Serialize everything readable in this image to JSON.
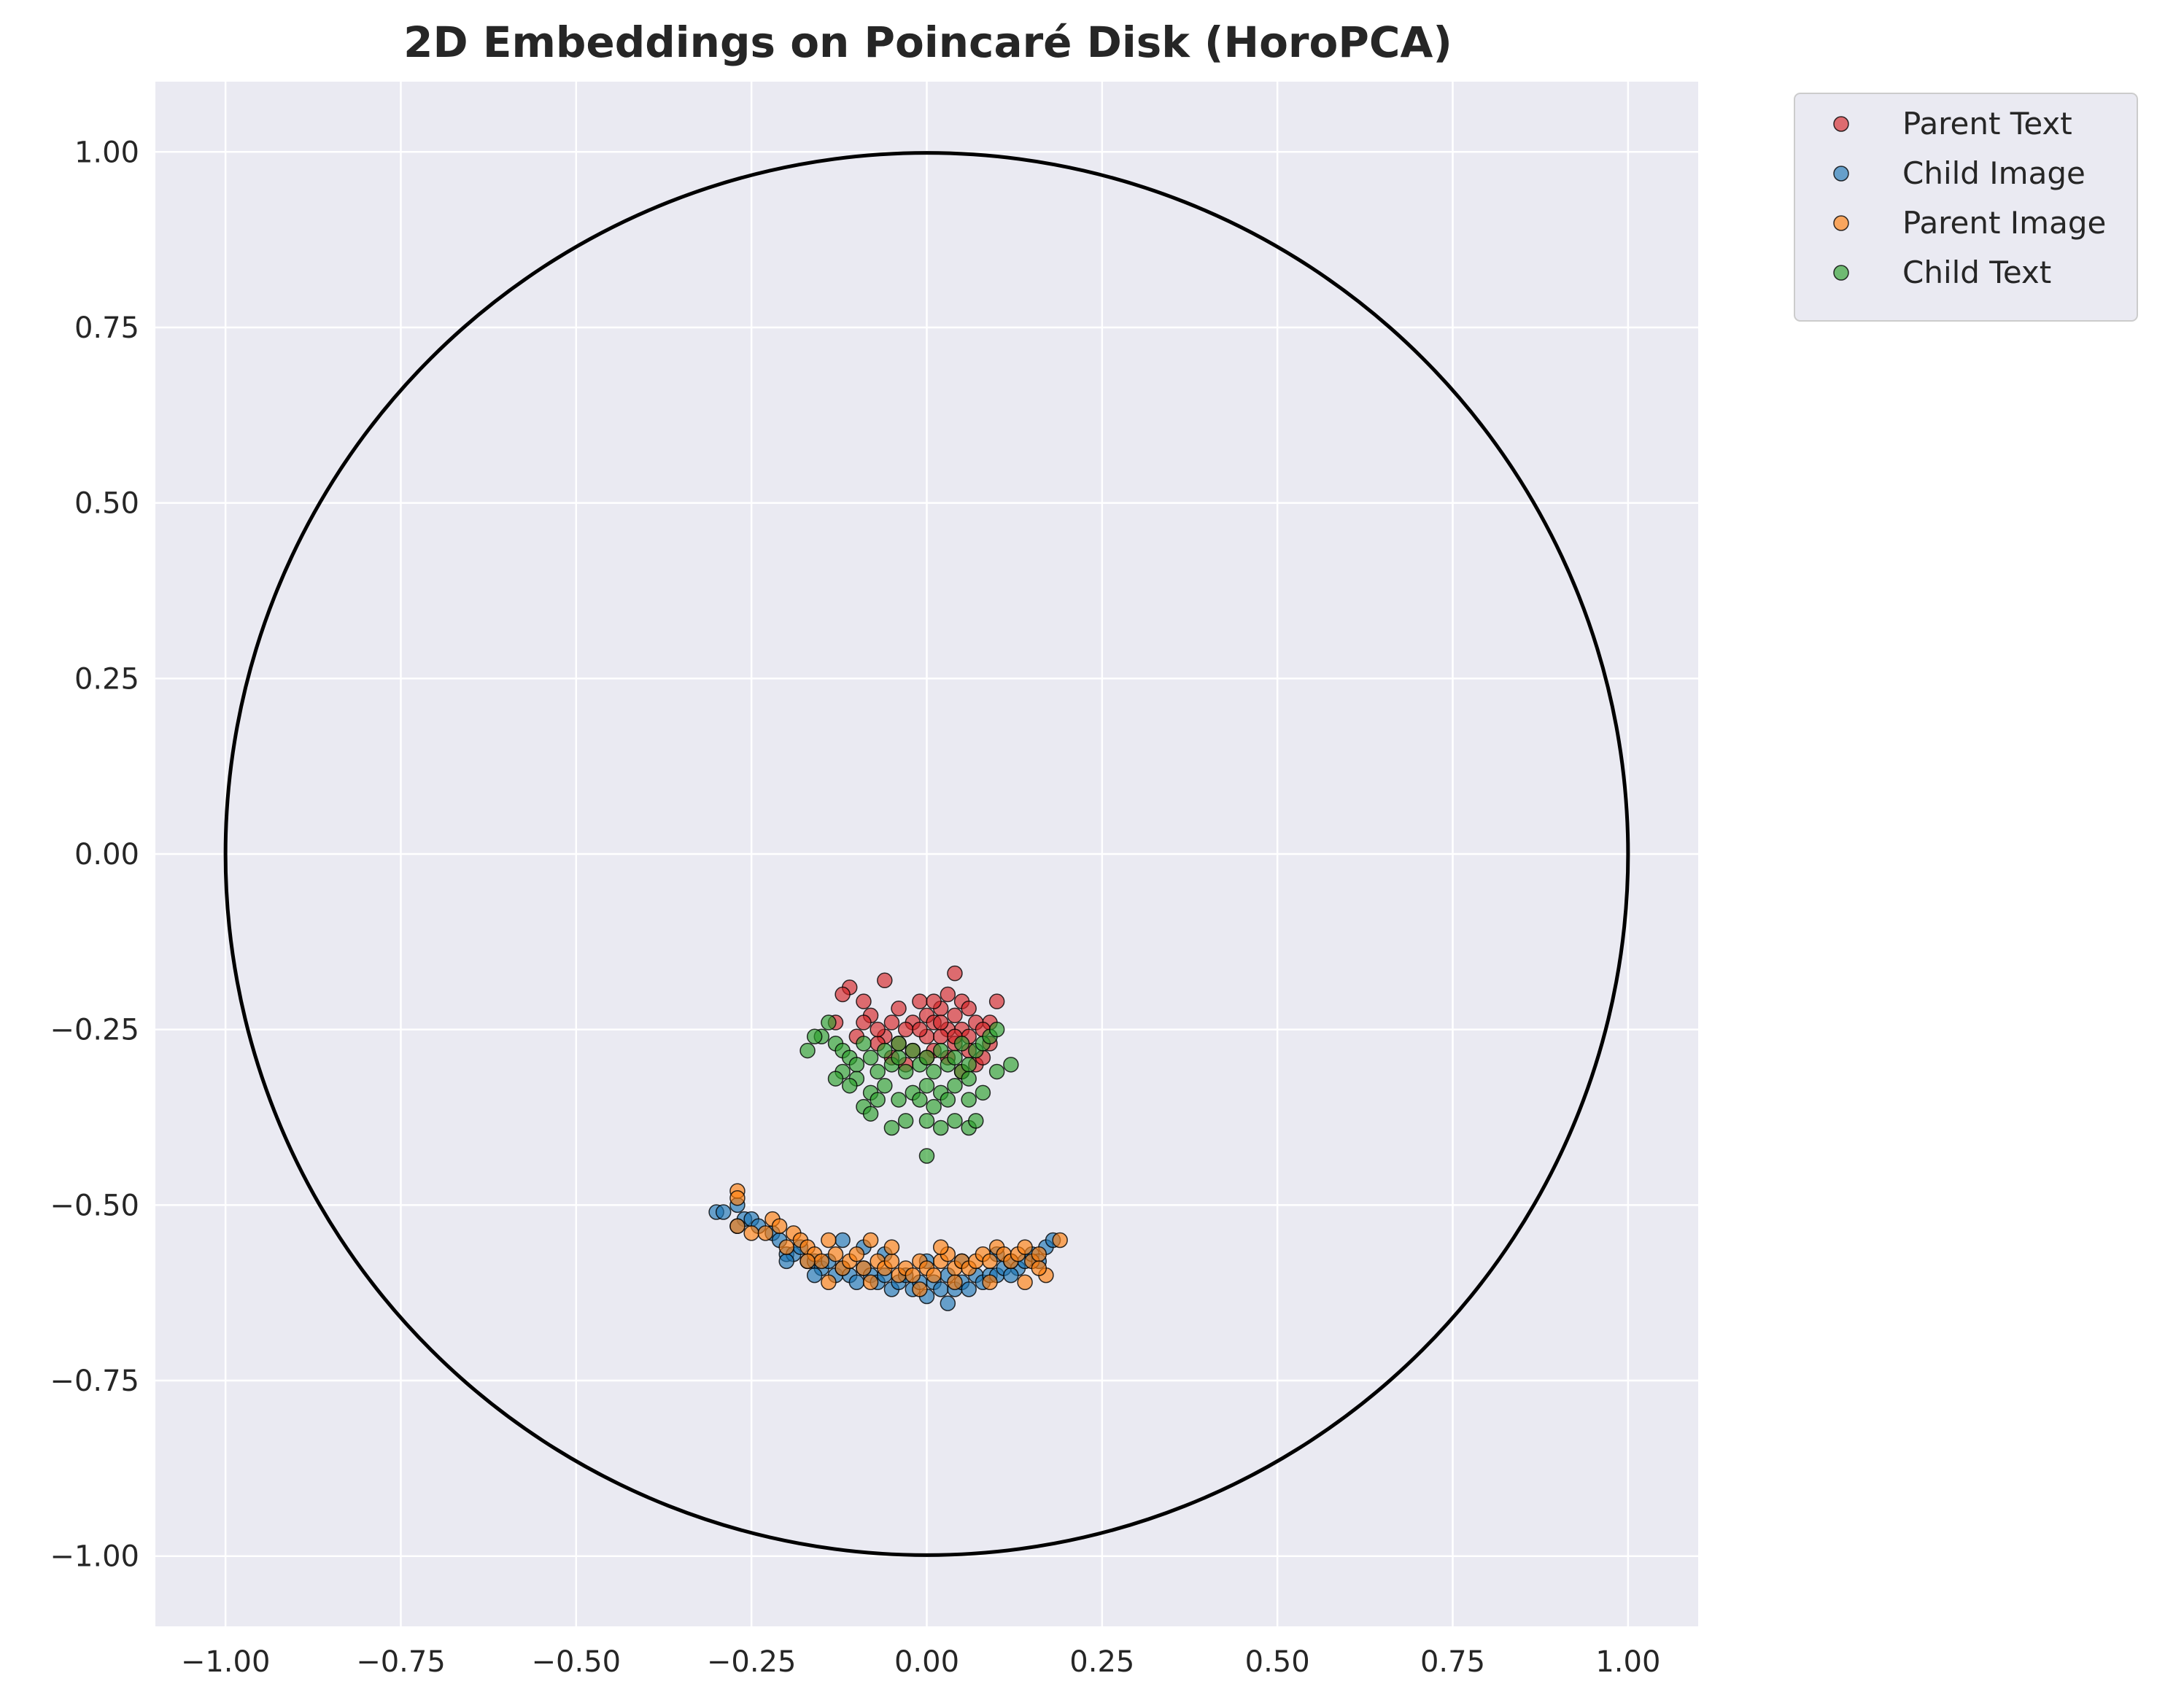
{
  "chart_data": {
    "type": "scatter",
    "title": "2D Embeddings on Poincaré Disk (HoroPCA)",
    "xlabel": "",
    "ylabel": "",
    "xlim": [
      -1.1,
      1.1
    ],
    "ylim": [
      -1.1,
      1.1
    ],
    "x_ticks": [
      "−1.00",
      "−0.75",
      "−0.50",
      "−0.25",
      "0.00",
      "0.25",
      "0.50",
      "0.75",
      "1.00"
    ],
    "y_ticks": [
      "1.00",
      "0.75",
      "0.50",
      "0.25",
      "0.00",
      "−0.25",
      "−0.50",
      "−0.75",
      "−1.00"
    ],
    "x_tick_values": [
      -1,
      -0.75,
      -0.5,
      -0.25,
      0,
      0.25,
      0.5,
      0.75,
      1
    ],
    "y_tick_values": [
      1,
      0.75,
      0.5,
      0.25,
      0,
      -0.25,
      -0.5,
      -0.75,
      -1
    ],
    "grid": true,
    "background": "#eaeaf2",
    "unit_circle": {
      "center": [
        0,
        0
      ],
      "radius": 1,
      "color": "#000000"
    },
    "legend_position": "outside-top-right",
    "series": [
      {
        "name": "Parent Text",
        "color": "#d62728",
        "points": [
          [
            0.04,
            -0.17
          ],
          [
            -0.06,
            -0.18
          ],
          [
            -0.11,
            -0.19
          ],
          [
            -0.12,
            -0.2
          ],
          [
            -0.09,
            -0.21
          ],
          [
            0.03,
            -0.2
          ],
          [
            0.05,
            -0.21
          ],
          [
            -0.01,
            -0.21
          ],
          [
            0.1,
            -0.21
          ],
          [
            0.06,
            -0.22
          ],
          [
            -0.04,
            -0.22
          ],
          [
            0.0,
            -0.23
          ],
          [
            0.02,
            -0.22
          ],
          [
            -0.08,
            -0.23
          ],
          [
            0.09,
            -0.24
          ],
          [
            0.07,
            -0.24
          ],
          [
            0.04,
            -0.23
          ],
          [
            -0.02,
            -0.24
          ],
          [
            0.01,
            -0.24
          ],
          [
            -0.05,
            -0.24
          ],
          [
            -0.09,
            -0.24
          ],
          [
            0.05,
            -0.25
          ],
          [
            0.03,
            -0.25
          ],
          [
            -0.03,
            -0.25
          ],
          [
            0.0,
            -0.26
          ],
          [
            0.06,
            -0.26
          ],
          [
            -0.06,
            -0.26
          ],
          [
            0.02,
            -0.26
          ],
          [
            -0.01,
            -0.25
          ],
          [
            0.08,
            -0.25
          ],
          [
            -0.04,
            -0.27
          ],
          [
            0.04,
            -0.27
          ],
          [
            0.01,
            -0.28
          ],
          [
            -0.02,
            -0.28
          ],
          [
            0.06,
            -0.28
          ],
          [
            -0.07,
            -0.27
          ],
          [
            0.03,
            -0.29
          ],
          [
            0.0,
            -0.29
          ],
          [
            -0.05,
            -0.29
          ],
          [
            0.07,
            -0.3
          ],
          [
            -0.1,
            -0.26
          ],
          [
            0.09,
            -0.27
          ],
          [
            -0.03,
            -0.3
          ],
          [
            0.05,
            -0.31
          ],
          [
            0.02,
            -0.24
          ],
          [
            -0.13,
            -0.24
          ],
          [
            0.01,
            -0.21
          ],
          [
            -0.07,
            -0.25
          ],
          [
            0.08,
            -0.29
          ],
          [
            0.04,
            -0.26
          ]
        ]
      },
      {
        "name": "Child Image",
        "color": "#1f77b4",
        "points": [
          [
            -0.3,
            -0.51
          ],
          [
            -0.29,
            -0.51
          ],
          [
            -0.27,
            -0.5
          ],
          [
            -0.26,
            -0.52
          ],
          [
            -0.25,
            -0.52
          ],
          [
            -0.24,
            -0.53
          ],
          [
            -0.22,
            -0.54
          ],
          [
            -0.21,
            -0.55
          ],
          [
            -0.2,
            -0.57
          ],
          [
            -0.19,
            -0.57
          ],
          [
            -0.18,
            -0.56
          ],
          [
            -0.17,
            -0.58
          ],
          [
            -0.16,
            -0.58
          ],
          [
            -0.15,
            -0.59
          ],
          [
            -0.14,
            -0.58
          ],
          [
            -0.13,
            -0.6
          ],
          [
            -0.12,
            -0.59
          ],
          [
            -0.11,
            -0.6
          ],
          [
            -0.1,
            -0.61
          ],
          [
            -0.09,
            -0.59
          ],
          [
            -0.08,
            -0.6
          ],
          [
            -0.07,
            -0.61
          ],
          [
            -0.06,
            -0.6
          ],
          [
            -0.05,
            -0.62
          ],
          [
            -0.04,
            -0.61
          ],
          [
            -0.03,
            -0.6
          ],
          [
            -0.02,
            -0.62
          ],
          [
            -0.01,
            -0.61
          ],
          [
            0.0,
            -0.63
          ],
          [
            0.01,
            -0.61
          ],
          [
            0.02,
            -0.62
          ],
          [
            0.03,
            -0.64
          ],
          [
            0.04,
            -0.62
          ],
          [
            0.05,
            -0.61
          ],
          [
            0.06,
            -0.62
          ],
          [
            0.07,
            -0.6
          ],
          [
            0.08,
            -0.61
          ],
          [
            0.09,
            -0.6
          ],
          [
            0.1,
            -0.6
          ],
          [
            0.11,
            -0.59
          ],
          [
            0.12,
            -0.58
          ],
          [
            0.13,
            -0.59
          ],
          [
            0.14,
            -0.58
          ],
          [
            0.15,
            -0.57
          ],
          [
            0.16,
            -0.58
          ],
          [
            0.17,
            -0.56
          ],
          [
            0.18,
            -0.55
          ],
          [
            -0.16,
            -0.6
          ],
          [
            -0.12,
            -0.55
          ],
          [
            -0.06,
            -0.57
          ],
          [
            0.0,
            -0.58
          ],
          [
            0.05,
            -0.58
          ],
          [
            0.1,
            -0.57
          ],
          [
            -0.2,
            -0.58
          ],
          [
            -0.27,
            -0.53
          ],
          [
            0.03,
            -0.6
          ],
          [
            -0.09,
            -0.56
          ],
          [
            0.12,
            -0.6
          ]
        ]
      },
      {
        "name": "Parent Image",
        "color": "#ff7f0e",
        "points": [
          [
            -0.27,
            -0.48
          ],
          [
            -0.27,
            -0.49
          ],
          [
            -0.22,
            -0.52
          ],
          [
            -0.21,
            -0.53
          ],
          [
            -0.25,
            -0.54
          ],
          [
            -0.23,
            -0.54
          ],
          [
            -0.27,
            -0.53
          ],
          [
            -0.19,
            -0.54
          ],
          [
            -0.2,
            -0.56
          ],
          [
            -0.18,
            -0.55
          ],
          [
            -0.17,
            -0.56
          ],
          [
            -0.16,
            -0.57
          ],
          [
            -0.14,
            -0.55
          ],
          [
            -0.15,
            -0.58
          ],
          [
            -0.13,
            -0.57
          ],
          [
            -0.12,
            -0.59
          ],
          [
            -0.11,
            -0.58
          ],
          [
            -0.1,
            -0.57
          ],
          [
            -0.09,
            -0.59
          ],
          [
            -0.08,
            -0.55
          ],
          [
            -0.07,
            -0.58
          ],
          [
            -0.06,
            -0.59
          ],
          [
            -0.05,
            -0.58
          ],
          [
            -0.04,
            -0.6
          ],
          [
            -0.03,
            -0.59
          ],
          [
            -0.02,
            -0.6
          ],
          [
            -0.01,
            -0.58
          ],
          [
            0.0,
            -0.59
          ],
          [
            0.01,
            -0.6
          ],
          [
            0.02,
            -0.58
          ],
          [
            0.03,
            -0.57
          ],
          [
            0.04,
            -0.59
          ],
          [
            0.05,
            -0.58
          ],
          [
            0.06,
            -0.59
          ],
          [
            0.07,
            -0.58
          ],
          [
            0.08,
            -0.57
          ],
          [
            0.09,
            -0.58
          ],
          [
            0.1,
            -0.56
          ],
          [
            0.11,
            -0.57
          ],
          [
            0.12,
            -0.58
          ],
          [
            0.13,
            -0.57
          ],
          [
            0.14,
            -0.56
          ],
          [
            0.15,
            -0.58
          ],
          [
            0.16,
            -0.57
          ],
          [
            0.17,
            -0.6
          ],
          [
            0.16,
            -0.59
          ],
          [
            0.19,
            -0.55
          ],
          [
            -0.14,
            -0.61
          ],
          [
            -0.08,
            -0.61
          ],
          [
            -0.01,
            -0.62
          ],
          [
            0.04,
            -0.61
          ],
          [
            0.09,
            -0.61
          ],
          [
            0.14,
            -0.61
          ],
          [
            -0.17,
            -0.58
          ],
          [
            -0.05,
            -0.56
          ],
          [
            0.02,
            -0.56
          ]
        ]
      },
      {
        "name": "Child Text",
        "color": "#2ca02c",
        "points": [
          [
            -0.14,
            -0.24
          ],
          [
            -0.15,
            -0.26
          ],
          [
            -0.16,
            -0.26
          ],
          [
            -0.13,
            -0.27
          ],
          [
            -0.12,
            -0.28
          ],
          [
            -0.17,
            -0.28
          ],
          [
            -0.11,
            -0.29
          ],
          [
            -0.1,
            -0.3
          ],
          [
            -0.09,
            -0.27
          ],
          [
            -0.08,
            -0.29
          ],
          [
            -0.07,
            -0.31
          ],
          [
            -0.06,
            -0.28
          ],
          [
            -0.05,
            -0.3
          ],
          [
            -0.04,
            -0.29
          ],
          [
            -0.03,
            -0.31
          ],
          [
            -0.02,
            -0.28
          ],
          [
            -0.01,
            -0.3
          ],
          [
            0.0,
            -0.29
          ],
          [
            0.01,
            -0.31
          ],
          [
            0.02,
            -0.28
          ],
          [
            0.03,
            -0.3
          ],
          [
            0.04,
            -0.29
          ],
          [
            0.05,
            -0.31
          ],
          [
            0.06,
            -0.3
          ],
          [
            0.07,
            -0.28
          ],
          [
            0.08,
            -0.27
          ],
          [
            0.09,
            -0.26
          ],
          [
            0.1,
            -0.25
          ],
          [
            0.06,
            -0.32
          ],
          [
            0.04,
            -0.33
          ],
          [
            0.02,
            -0.34
          ],
          [
            0.0,
            -0.33
          ],
          [
            -0.02,
            -0.34
          ],
          [
            -0.04,
            -0.35
          ],
          [
            -0.06,
            -0.33
          ],
          [
            -0.08,
            -0.34
          ],
          [
            -0.1,
            -0.32
          ],
          [
            -0.12,
            -0.31
          ],
          [
            -0.09,
            -0.36
          ],
          [
            -0.07,
            -0.35
          ],
          [
            0.01,
            -0.36
          ],
          [
            0.03,
            -0.35
          ],
          [
            0.06,
            -0.35
          ],
          [
            0.08,
            -0.34
          ],
          [
            0.12,
            -0.3
          ],
          [
            -0.03,
            -0.38
          ],
          [
            0.0,
            -0.38
          ],
          [
            0.04,
            -0.38
          ],
          [
            0.06,
            -0.39
          ],
          [
            0.07,
            -0.38
          ],
          [
            -0.05,
            -0.39
          ],
          [
            0.0,
            -0.43
          ],
          [
            -0.11,
            -0.33
          ],
          [
            -0.13,
            -0.32
          ],
          [
            0.1,
            -0.31
          ],
          [
            -0.08,
            -0.37
          ],
          [
            0.02,
            -0.39
          ],
          [
            -0.01,
            -0.35
          ],
          [
            0.05,
            -0.27
          ],
          [
            -0.04,
            -0.27
          ]
        ]
      }
    ]
  }
}
